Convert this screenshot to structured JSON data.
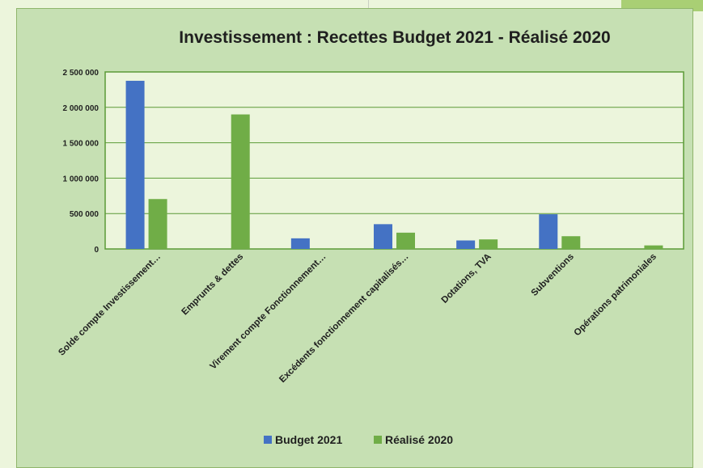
{
  "chart_data": {
    "type": "bar",
    "title": "Investissement : Recettes Budget 2021 - Réalisé 2020",
    "xlabel": "",
    "ylabel": "",
    "ylim": [
      0,
      2500000
    ],
    "yticks": [
      0,
      500000,
      1000000,
      1500000,
      2000000,
      2500000
    ],
    "ytick_labels": [
      "0",
      "500 000",
      "1 000 000",
      "1 500 000",
      "2 000 000",
      "2 500 000"
    ],
    "grid": true,
    "legend": "bottom",
    "categories": [
      "Solde compte Investissement…",
      "Emprunts & dettes",
      "Virement compte Fonctionnement…",
      "Excédents fonctionnement capitalisés…",
      "Dotations, TVA",
      "Subventions",
      "Opérations patrimoniales"
    ],
    "series": [
      {
        "name": "Budget 2021",
        "color": "#4472c4",
        "values": [
          2375000,
          0,
          150000,
          350000,
          120000,
          490000,
          0
        ]
      },
      {
        "name": "Réalisé 2020",
        "color": "#70ad47",
        "values": [
          705000,
          1900000,
          0,
          230000,
          135000,
          180000,
          50000
        ]
      }
    ]
  }
}
